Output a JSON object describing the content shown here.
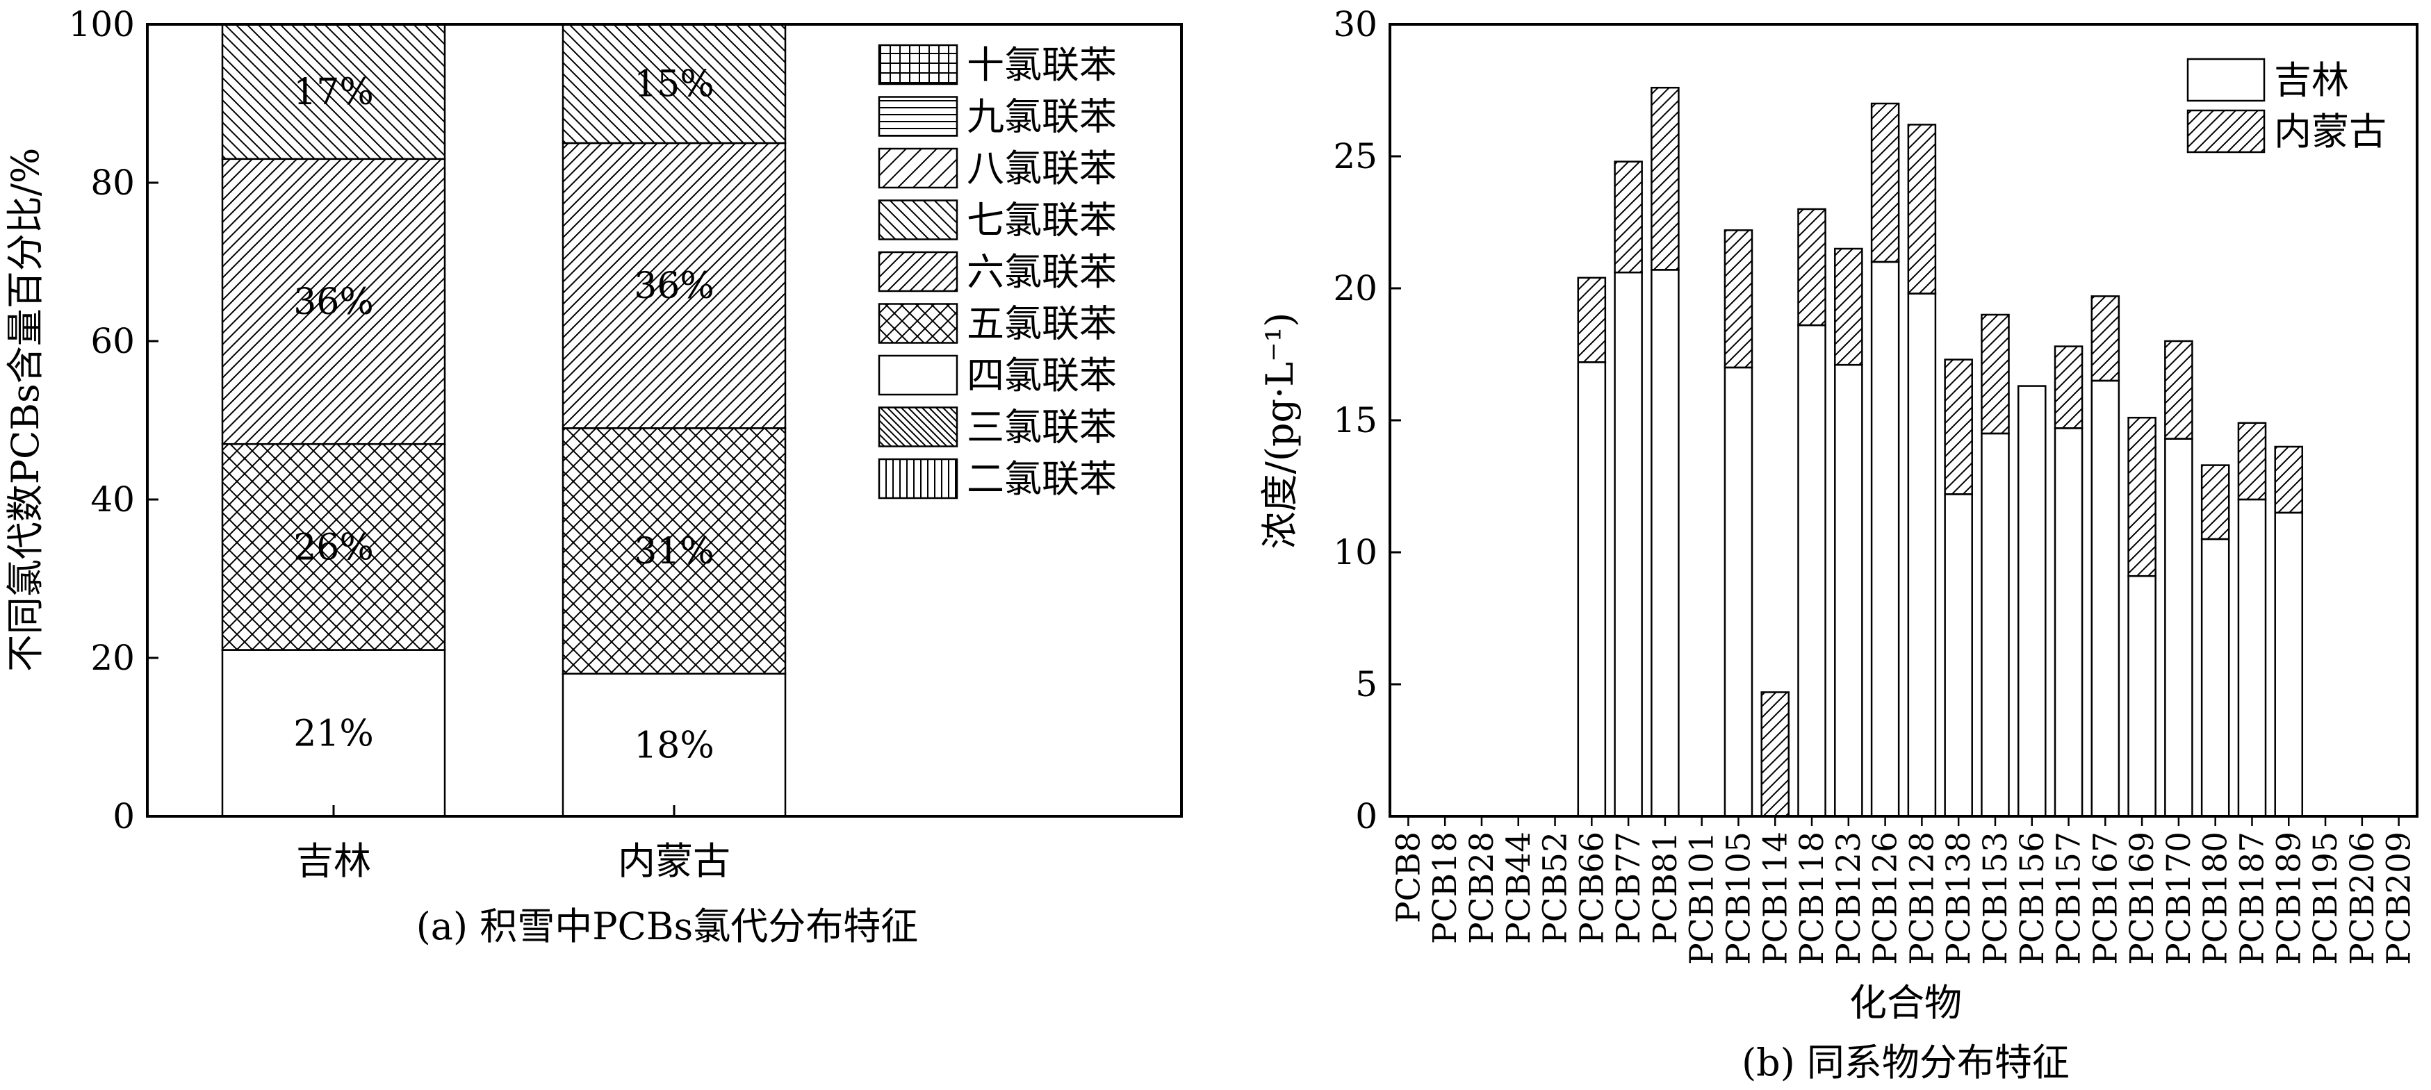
{
  "chart_data": [
    {
      "type": "bar",
      "stacked": true,
      "panel": "a",
      "caption": "(a) 积雪中PCBs氯代分布特征",
      "ylabel": "不同氯代数PCBs含量百分比/%",
      "xlabel": "",
      "ylim": [
        0,
        100
      ],
      "yticks": [
        "0",
        "20",
        "40",
        "60",
        "80",
        "100"
      ],
      "categories": [
        "吉林",
        "内蒙古"
      ],
      "legend_position": "top-right",
      "legend": [
        "十氯联苯",
        "九氯联苯",
        "八氯联苯",
        "七氯联苯",
        "六氯联苯",
        "五氯联苯",
        "四氯联苯",
        "三氯联苯",
        "二氯联苯"
      ],
      "series": [
        {
          "name": "四氯联苯",
          "pattern": "none",
          "values": [
            21,
            18
          ],
          "labels": [
            "21%",
            "18%"
          ]
        },
        {
          "name": "五氯联苯",
          "pattern": "cross",
          "values": [
            26,
            31
          ],
          "labels": [
            "26%",
            "31%"
          ]
        },
        {
          "name": "六氯联苯",
          "pattern": "diag-fwd",
          "values": [
            36,
            36
          ],
          "labels": [
            "36%",
            "36%"
          ]
        },
        {
          "name": "七氯联苯",
          "pattern": "diag-back",
          "values": [
            17,
            15
          ],
          "labels": [
            "17%",
            "15%"
          ]
        }
      ],
      "legend_patterns": {
        "十氯联苯": "grid",
        "九氯联苯": "horizontal",
        "八氯联苯": "diag-fwd-sparse",
        "七氯联苯": "diag-back",
        "六氯联苯": "diag-fwd",
        "五氯联苯": "cross",
        "四氯联苯": "none",
        "三氯联苯": "diag-back-dense",
        "二氯联苯": "vertical"
      }
    },
    {
      "type": "bar",
      "stacked": true,
      "panel": "b",
      "caption": "(b) 同系物分布特征",
      "ylabel": "浓度/(pg·L⁻¹)",
      "xlabel": "化合物",
      "ylim": [
        0,
        30
      ],
      "yticks": [
        "0",
        "5",
        "10",
        "15",
        "20",
        "25",
        "30"
      ],
      "legend_position": "top-right",
      "categories": [
        "PCB8",
        "PCB18",
        "PCB28",
        "PCB44",
        "PCB52",
        "PCB66",
        "PCB77",
        "PCB81",
        "PCB101",
        "PCB105",
        "PCB114",
        "PCB118",
        "PCB123",
        "PCB126",
        "PCB128",
        "PCB138",
        "PCB153",
        "PCB156",
        "PCB157",
        "PCB167",
        "PCB169",
        "PCB170",
        "PCB180",
        "PCB187",
        "PCB189",
        "PCB195",
        "PCB206",
        "PCB209"
      ],
      "series": [
        {
          "name": "吉林",
          "pattern": "none",
          "values": [
            0,
            0,
            0,
            0,
            0,
            17.2,
            20.6,
            20.7,
            0,
            17.0,
            0,
            18.6,
            17.1,
            21.0,
            19.8,
            12.2,
            14.5,
            16.3,
            14.7,
            16.5,
            9.1,
            14.3,
            10.5,
            12.0,
            11.5,
            0,
            0,
            0
          ]
        },
        {
          "name": "内蒙古",
          "pattern": "diag-fwd",
          "values": [
            0,
            0,
            0,
            0,
            0,
            3.2,
            4.2,
            6.9,
            0,
            5.2,
            4.7,
            4.4,
            4.4,
            6.0,
            6.4,
            5.1,
            4.5,
            0,
            3.1,
            3.2,
            6.0,
            3.7,
            2.8,
            2.9,
            2.5,
            0,
            0,
            0
          ]
        }
      ]
    }
  ]
}
